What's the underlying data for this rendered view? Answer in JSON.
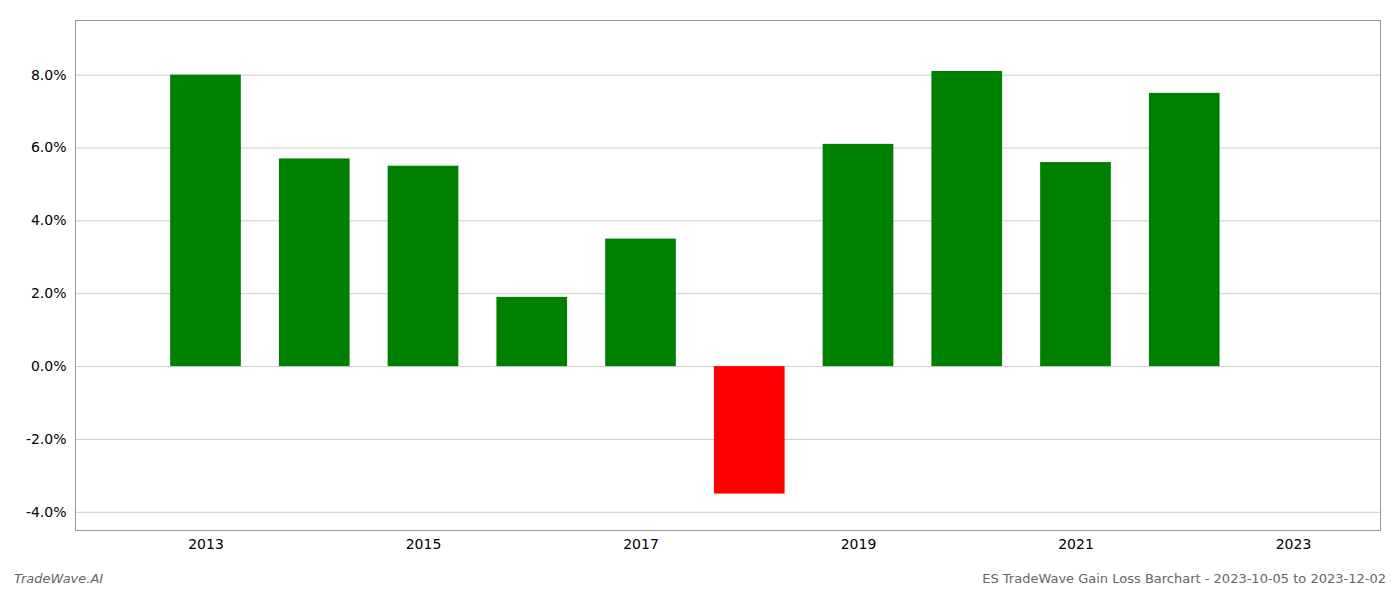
{
  "chart_data": {
    "type": "bar",
    "x": [
      2013,
      2014,
      2015,
      2016,
      2017,
      2018,
      2019,
      2020,
      2021,
      2022
    ],
    "values": [
      0.08,
      0.057,
      0.055,
      0.019,
      0.035,
      -0.035,
      0.061,
      0.081,
      0.056,
      0.075
    ],
    "colors": [
      "#008000",
      "#008000",
      "#008000",
      "#008000",
      "#008000",
      "#ff0000",
      "#008000",
      "#008000",
      "#008000",
      "#008000"
    ],
    "xlim": [
      2011.8,
      2023.8
    ],
    "xticks": [
      2013,
      2015,
      2017,
      2019,
      2021,
      2023
    ],
    "ylim": [
      -0.045,
      0.095
    ],
    "yticks": [
      {
        "value": -0.04,
        "label": "-4.0%"
      },
      {
        "value": -0.02,
        "label": "-2.0%"
      },
      {
        "value": 0.0,
        "label": "0.0%"
      },
      {
        "value": 0.02,
        "label": "2.0%"
      },
      {
        "value": 0.04,
        "label": "4.0%"
      },
      {
        "value": 0.06,
        "label": "6.0%"
      },
      {
        "value": 0.08,
        "label": "8.0%"
      }
    ],
    "grid": true,
    "annotations": [
      "TradeWave.AI",
      "ES TradeWave Gain Loss Barchart - 2023-10-05 to 2023-12-02"
    ]
  }
}
